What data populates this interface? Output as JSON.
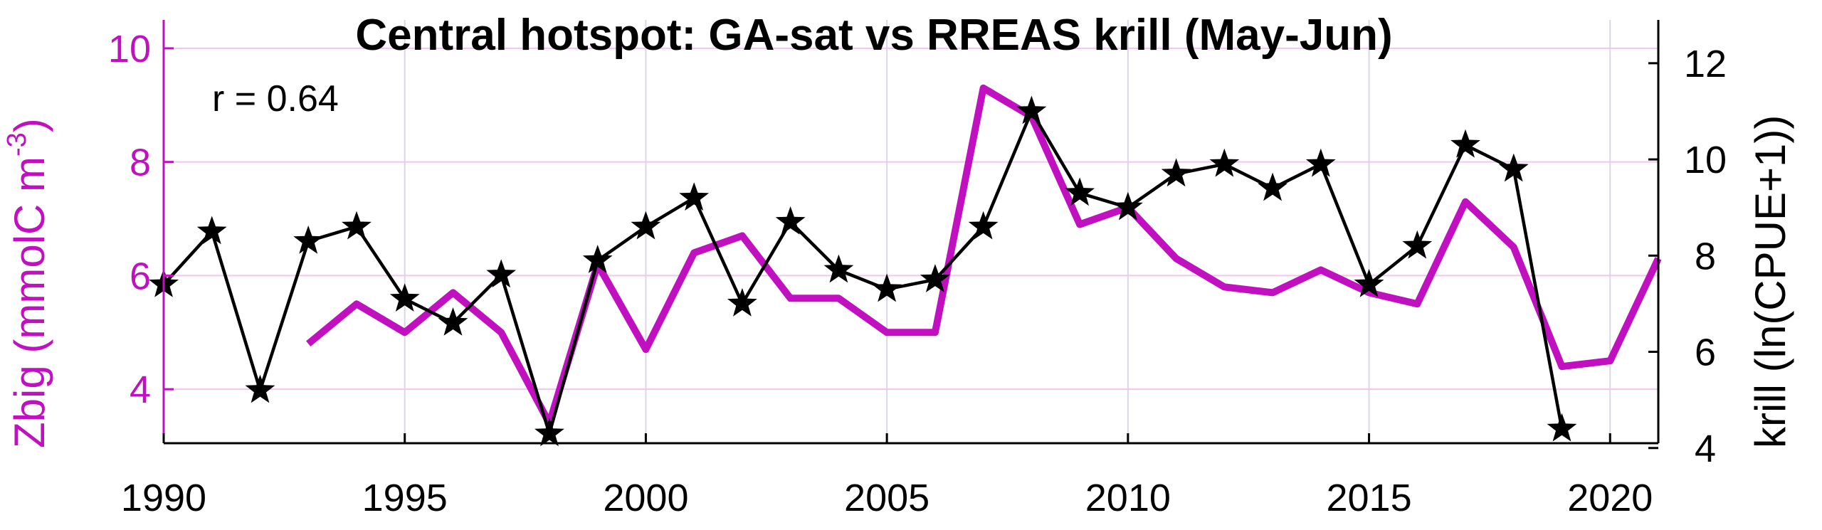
{
  "chart_data": {
    "type": "line",
    "title": "Central hotspot: GA-sat vs RREAS krill (May-Jun)",
    "annotation": "r = 0.64",
    "x_axis": {
      "ticks": [
        "1990",
        "1995",
        "2000",
        "2005",
        "2010",
        "2015",
        "2020"
      ],
      "range": [
        1990,
        2021
      ]
    },
    "y_left": {
      "label_main": "Zbig (mmolC m",
      "label_sup": "-3",
      "label_close": ")",
      "ticks": [
        "4",
        "6",
        "8",
        "10"
      ],
      "range": [
        3.05,
        10.5
      ],
      "color": "#c010c0"
    },
    "y_right": {
      "label": "krill (ln(CPUE+1))",
      "ticks": [
        "4",
        "6",
        "8",
        "10",
        "12"
      ],
      "range": [
        4.1,
        12.9
      ],
      "color": "#000000"
    },
    "grid": true,
    "series": [
      {
        "axis": "left",
        "color": "#c010c0",
        "marker": "none",
        "x": [
          1993,
          1994,
          1995,
          1996,
          1997,
          1998,
          1999,
          2000,
          2001,
          2002,
          2003,
          2004,
          2005,
          2006,
          2007,
          2008,
          2009,
          2010,
          2011,
          2012,
          2013,
          2014,
          2015,
          2016,
          2017,
          2018,
          2019,
          2020,
          2021
        ],
        "values": [
          4.8,
          5.5,
          5.0,
          5.7,
          5.0,
          3.4,
          6.2,
          4.7,
          6.4,
          6.7,
          5.6,
          5.6,
          5.0,
          5.0,
          9.3,
          8.8,
          6.9,
          7.2,
          6.3,
          5.8,
          5.7,
          6.1,
          5.7,
          5.5,
          7.3,
          6.5,
          4.4,
          4.5,
          6.3
        ]
      },
      {
        "axis": "right",
        "color": "#000000",
        "marker": "star",
        "x": [
          1990,
          1991,
          1992,
          1993,
          1994,
          1995,
          1996,
          1997,
          1998,
          1999,
          2000,
          2001,
          2002,
          2003,
          2004,
          2005,
          2006,
          2007,
          2008,
          2009,
          2010,
          2011,
          2012,
          2013,
          2014,
          2015,
          2016,
          2017,
          2018,
          2019
        ],
        "values": [
          7.4,
          8.5,
          5.2,
          8.3,
          8.6,
          7.1,
          6.6,
          7.6,
          4.3,
          7.9,
          8.6,
          9.2,
          7.0,
          8.7,
          7.7,
          7.3,
          7.5,
          8.6,
          11.0,
          9.3,
          9.0,
          9.7,
          9.9,
          9.4,
          9.9,
          7.4,
          8.2,
          10.3,
          9.8,
          4.4
        ]
      }
    ]
  }
}
